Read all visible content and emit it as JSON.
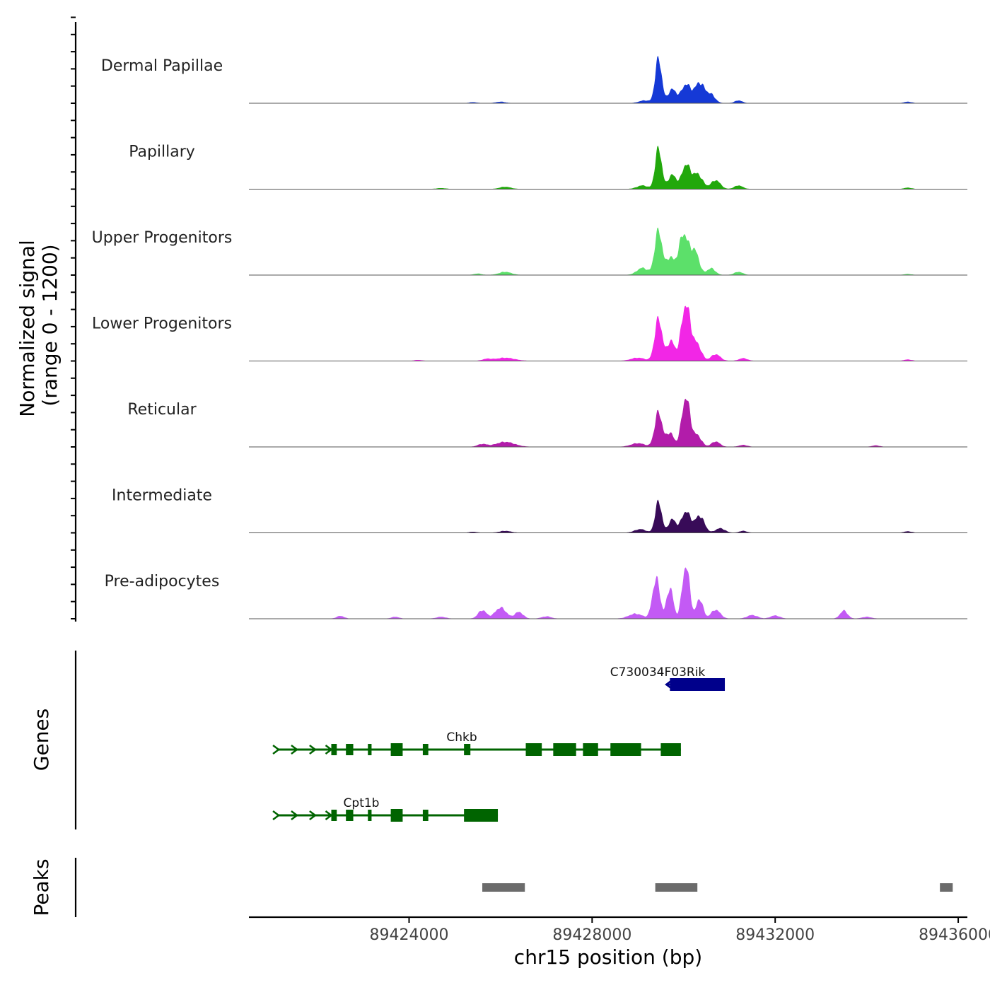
{
  "chart_data": {
    "type": "area",
    "title": "",
    "ylabel_line1": "Normalized signal",
    "ylabel_line2": "(range 0 - 1200)",
    "ylim": [
      0,
      1200
    ],
    "xlabel": "chr15 position (bp)",
    "xlim": [
      89420500,
      89436200
    ],
    "x_ticks": [
      89424000,
      89428000,
      89432000,
      89436000
    ],
    "x_tick_labels": [
      "89424000",
      "89428000",
      "89432000",
      "89436000"
    ],
    "series": [
      {
        "name": "Dermal Papillae",
        "color": "#1539d6",
        "peaks": [
          [
            89429450,
            1000,
            70
          ],
          [
            89429750,
            310,
            90
          ],
          [
            89430050,
            420,
            100
          ],
          [
            89430350,
            460,
            110
          ],
          [
            89430600,
            180,
            90
          ],
          [
            89429150,
            60,
            120
          ],
          [
            89431200,
            60,
            80
          ],
          [
            89426000,
            30,
            100
          ],
          [
            89425400,
            20,
            80
          ],
          [
            89434900,
            30,
            80
          ]
        ]
      },
      {
        "name": "Papillary",
        "color": "#22a80c",
        "peaks": [
          [
            89429450,
            920,
            70
          ],
          [
            89429750,
            320,
            90
          ],
          [
            89430050,
            540,
            90
          ],
          [
            89430300,
            340,
            110
          ],
          [
            89430700,
            200,
            100
          ],
          [
            89429100,
            80,
            120
          ],
          [
            89431200,
            80,
            90
          ],
          [
            89426100,
            50,
            120
          ],
          [
            89424700,
            20,
            100
          ],
          [
            89434900,
            30,
            80
          ]
        ]
      },
      {
        "name": "Upper Progenitors",
        "color": "#5ce06a",
        "peaks": [
          [
            89429450,
            1000,
            80
          ],
          [
            89429700,
            380,
            80
          ],
          [
            89430000,
            930,
            110
          ],
          [
            89430250,
            500,
            90
          ],
          [
            89430600,
            150,
            90
          ],
          [
            89429100,
            160,
            120
          ],
          [
            89431200,
            70,
            90
          ],
          [
            89426100,
            70,
            130
          ],
          [
            89425500,
            30,
            80
          ],
          [
            89434900,
            20,
            80
          ]
        ]
      },
      {
        "name": "Lower Progenitors",
        "color": "#f226e6",
        "peaks": [
          [
            89429450,
            950,
            80
          ],
          [
            89429720,
            450,
            80
          ],
          [
            89430050,
            1280,
            100
          ],
          [
            89430300,
            350,
            90
          ],
          [
            89430700,
            150,
            100
          ],
          [
            89429000,
            70,
            150
          ],
          [
            89431300,
            60,
            90
          ],
          [
            89426100,
            70,
            200
          ],
          [
            89425700,
            40,
            100
          ],
          [
            89424200,
            20,
            80
          ],
          [
            89434900,
            30,
            80
          ]
        ]
      },
      {
        "name": "Reticular",
        "color": "#b21caa",
        "peaks": [
          [
            89429450,
            780,
            80
          ],
          [
            89429700,
            320,
            80
          ],
          [
            89430050,
            1120,
            90
          ],
          [
            89430300,
            250,
            90
          ],
          [
            89430700,
            120,
            90
          ],
          [
            89429000,
            80,
            150
          ],
          [
            89431300,
            40,
            90
          ],
          [
            89426100,
            110,
            200
          ],
          [
            89425600,
            60,
            100
          ],
          [
            89434200,
            30,
            80
          ]
        ]
      },
      {
        "name": "Intermediate",
        "color": "#380b58",
        "peaks": [
          [
            89429450,
            700,
            70
          ],
          [
            89429750,
            300,
            80
          ],
          [
            89430050,
            480,
            100
          ],
          [
            89430350,
            380,
            100
          ],
          [
            89430800,
            100,
            100
          ],
          [
            89429050,
            80,
            120
          ],
          [
            89431300,
            40,
            80
          ],
          [
            89426100,
            40,
            120
          ],
          [
            89425400,
            20,
            80
          ],
          [
            89434900,
            30,
            80
          ]
        ]
      },
      {
        "name": "Pre-adipocytes",
        "color": "#c35af5",
        "peaks": [
          [
            89429400,
            900,
            80
          ],
          [
            89429700,
            700,
            70
          ],
          [
            89430050,
            1200,
            80
          ],
          [
            89430350,
            450,
            70
          ],
          [
            89430700,
            200,
            100
          ],
          [
            89428950,
            110,
            150
          ],
          [
            89431500,
            80,
            110
          ],
          [
            89432000,
            70,
            100
          ],
          [
            89425600,
            190,
            90
          ],
          [
            89426000,
            250,
            120
          ],
          [
            89426400,
            150,
            90
          ],
          [
            89422500,
            60,
            80
          ],
          [
            89423700,
            40,
            80
          ],
          [
            89424700,
            40,
            100
          ],
          [
            89427000,
            50,
            100
          ],
          [
            89433500,
            180,
            80
          ],
          [
            89434000,
            40,
            100
          ]
        ]
      }
    ],
    "genes_label": "Genes",
    "genes": [
      {
        "name": "C730034F03Rik",
        "color": "#00008b",
        "strand": "+",
        "start": 89429620,
        "end": 89430900,
        "exons": [
          [
            89429700,
            89430900
          ]
        ]
      },
      {
        "name": "Chkb",
        "color": "#006400",
        "strand": "-",
        "start": 89421150,
        "end": 89429940,
        "exons": [
          [
            89422300,
            89422420
          ],
          [
            89422620,
            89422780
          ],
          [
            89423100,
            89423180
          ],
          [
            89423600,
            89423860
          ],
          [
            89424300,
            89424420
          ],
          [
            89425200,
            89425340
          ],
          [
            89426550,
            89426900
          ],
          [
            89427150,
            89427650
          ],
          [
            89427800,
            89428130
          ],
          [
            89428400,
            89429070
          ],
          [
            89429500,
            89429940
          ]
        ]
      },
      {
        "name": "Cpt1b",
        "color": "#006400",
        "strand": "-",
        "start": 89421150,
        "end": 89425940,
        "exons": [
          [
            89422300,
            89422420
          ],
          [
            89422620,
            89422780
          ],
          [
            89423100,
            89423180
          ],
          [
            89423600,
            89423860
          ],
          [
            89424300,
            89424420
          ],
          [
            89425200,
            89425940
          ]
        ]
      }
    ],
    "peaks_label": "Peaks",
    "peaks_color": "#6b6b6b",
    "peak_regions": [
      [
        89425600,
        89426530
      ],
      [
        89429380,
        89430300
      ],
      [
        89435600,
        89435880
      ]
    ]
  }
}
